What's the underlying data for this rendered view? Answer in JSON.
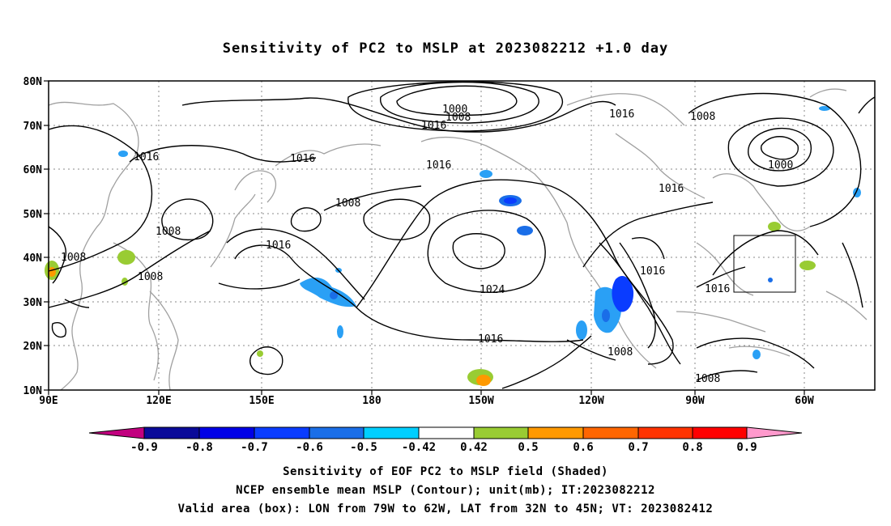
{
  "title": "Sensitivity of PC2 to MSLP at 2023082212 +1.0 day",
  "map": {
    "lat_labels": [
      "80N",
      "70N",
      "60N",
      "50N",
      "40N",
      "30N",
      "20N",
      "10N"
    ],
    "lon_labels": [
      "90E",
      "120E",
      "150E",
      "180",
      "150W",
      "120W",
      "90W",
      "60W"
    ],
    "grid": true,
    "valid_box": {
      "lon_from": "79W",
      "lon_to": "62W",
      "lat_from": "32N",
      "lat_to": "45N"
    }
  },
  "contour_labels": [
    "1000",
    "1008",
    "1016",
    "1016",
    "1008",
    "1016",
    "1016",
    "1000",
    "1016",
    "1008",
    "1008",
    "1008",
    "1008",
    "1016",
    "1024",
    "1016",
    "1016",
    "1016",
    "1008",
    "1008"
  ],
  "colorbar": {
    "ticks": [
      "-0.9",
      "-0.8",
      "-0.7",
      "-0.6",
      "-0.5",
      "-0.42",
      "0.42",
      "0.5",
      "0.6",
      "0.7",
      "0.8",
      "0.9"
    ],
    "colors": [
      "#c2007f",
      "#0a0a99",
      "#0000e6",
      "#0a3cff",
      "#1a6ee8",
      "#2aa0f5",
      "#00cfff",
      "#ffffff",
      "#99cc33",
      "#ff9900",
      "#ff6600",
      "#ff3300",
      "#ff0000",
      "#ff99cc"
    ]
  },
  "captions": {
    "line1": "Sensitivity of EOF PC2 to MSLP field (Shaded)",
    "line2": "NCEP ensemble mean MSLP (Contour); unit(mb); IT:2023082212",
    "line3": "Valid area (box): LON from 79W to 62W, LAT from 32N to 45N; VT: 2023082412"
  }
}
